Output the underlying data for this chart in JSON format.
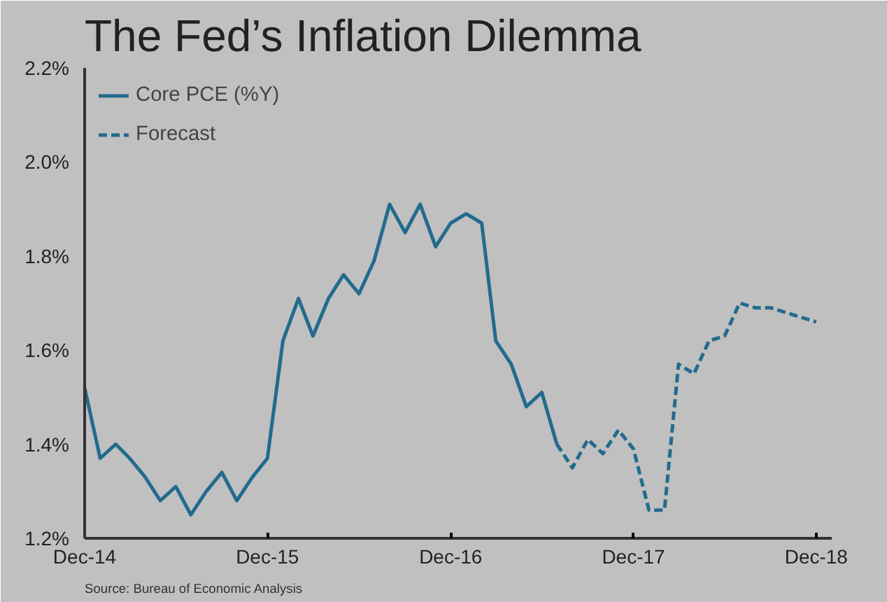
{
  "chart_data": {
    "type": "line",
    "title": "The Fed’s Inflation Dilemma",
    "x": [
      "2014-12",
      "2015-01",
      "2015-02",
      "2015-03",
      "2015-04",
      "2015-05",
      "2015-06",
      "2015-07",
      "2015-08",
      "2015-09",
      "2015-10",
      "2015-11",
      "2015-12",
      "2016-01",
      "2016-02",
      "2016-03",
      "2016-04",
      "2016-05",
      "2016-06",
      "2016-07",
      "2016-08",
      "2016-09",
      "2016-10",
      "2016-11",
      "2016-12",
      "2017-01",
      "2017-02",
      "2017-03",
      "2017-04",
      "2017-05",
      "2017-06",
      "2017-07"
    ],
    "series": [
      {
        "name": "Core PCE (%Y)",
        "color": "#236b8e",
        "line_style": "solid",
        "values": [
          1.52,
          1.37,
          1.4,
          1.37,
          1.33,
          1.28,
          1.31,
          1.25,
          1.3,
          1.34,
          1.28,
          1.33,
          1.37,
          1.62,
          1.71,
          1.63,
          1.71,
          1.76,
          1.72,
          1.79,
          1.91,
          1.85,
          1.91,
          1.82,
          1.87,
          1.89,
          1.87,
          1.62,
          1.57,
          1.48,
          1.51,
          1.4
        ]
      },
      {
        "name": "Forecast",
        "color": "#236b8e",
        "line_style": "dashed",
        "x": [
          "2017-07",
          "2017-08",
          "2017-09",
          "2017-10",
          "2017-11",
          "2017-12",
          "2018-01",
          "2018-02",
          "2018-03",
          "2018-04",
          "2018-05",
          "2018-06",
          "2018-07",
          "2018-08",
          "2018-09",
          "2018-10",
          "2018-11",
          "2018-12"
        ],
        "values": [
          1.4,
          1.35,
          1.41,
          1.38,
          1.43,
          1.39,
          1.26,
          1.26,
          1.57,
          1.55,
          1.62,
          1.63,
          1.7,
          1.69,
          1.69,
          1.68,
          1.67,
          1.66
        ]
      }
    ],
    "xlim": [
      "2014-12",
      "2019-01"
    ],
    "xticks": [
      {
        "value": "2014-12",
        "label": "Dec-14"
      },
      {
        "value": "2015-12",
        "label": "Dec-15"
      },
      {
        "value": "2016-12",
        "label": "Dec-16"
      },
      {
        "value": "2017-12",
        "label": "Dec-17"
      },
      {
        "value": "2018-12",
        "label": "Dec-18"
      }
    ],
    "ylim": [
      1.2,
      2.2
    ],
    "yticks": [
      {
        "value": 1.2,
        "label": "1.2%"
      },
      {
        "value": 1.4,
        "label": "1.4%"
      },
      {
        "value": 1.6,
        "label": "1.6%"
      },
      {
        "value": 1.8,
        "label": "1.8%"
      },
      {
        "value": 2.0,
        "label": "2.0%"
      },
      {
        "value": 2.2,
        "label": "2.2%"
      }
    ],
    "grid": false,
    "legend": "top left",
    "marker": "none",
    "annotations": [
      "Source: Bureau of Economic Analysis"
    ]
  }
}
